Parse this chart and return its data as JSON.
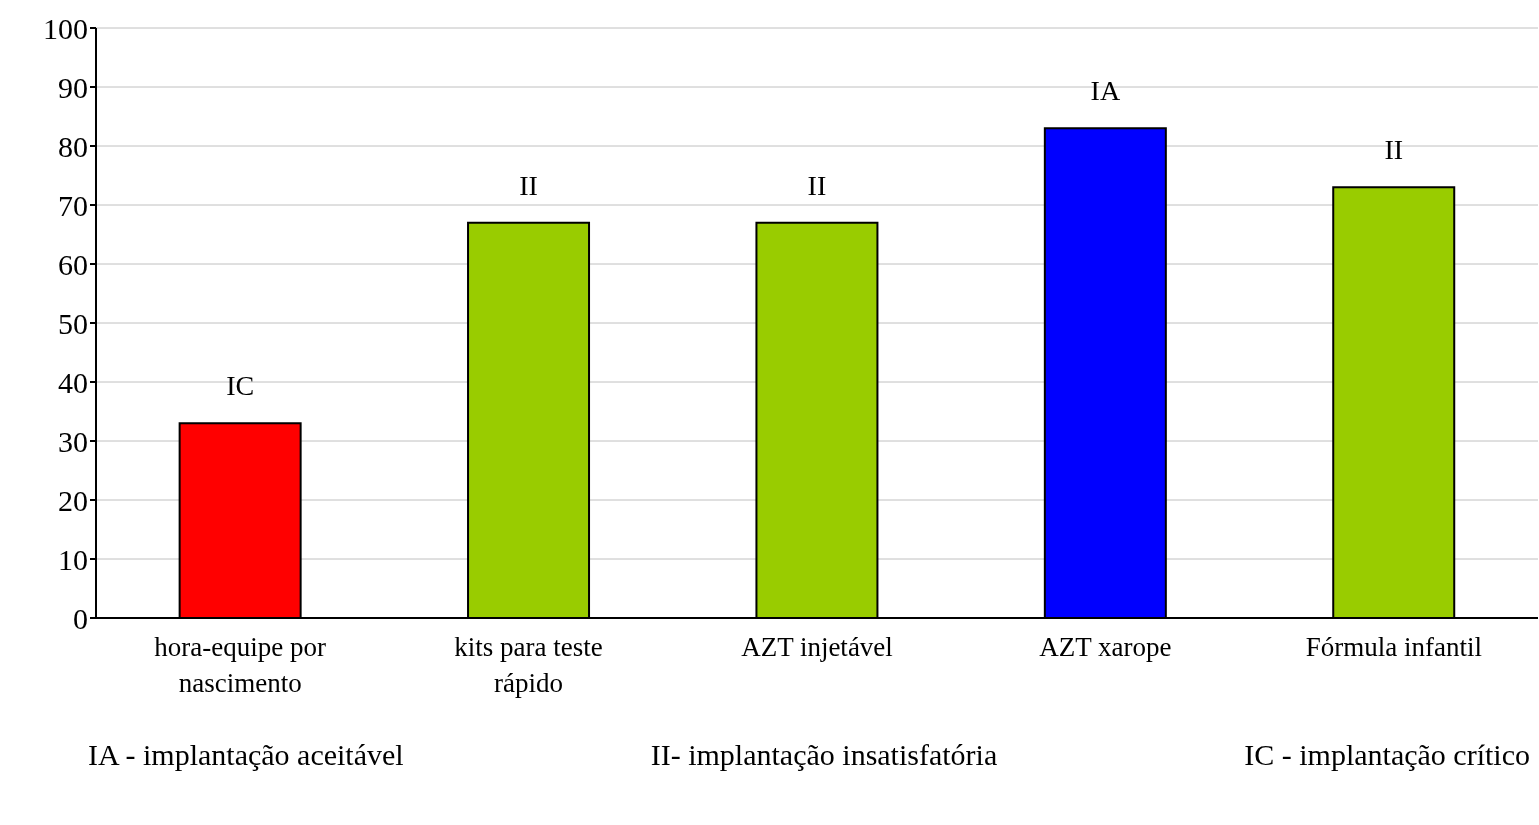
{
  "chart_data": {
    "type": "bar",
    "categories": [
      "hora-equipe por nascimento",
      "kits para teste rápido",
      "AZT injetável",
      "AZT xarope",
      "Fórmula infantil"
    ],
    "values": [
      33,
      67,
      67,
      83,
      73
    ],
    "colors": [
      "#ff0000",
      "#99cc00",
      "#99cc00",
      "#0000ff",
      "#99cc00"
    ],
    "value_labels": [
      "IC",
      "II",
      "II",
      "IA",
      "II"
    ],
    "ylim": [
      0,
      100
    ],
    "yticks": [
      0,
      10,
      20,
      30,
      40,
      50,
      60,
      70,
      80,
      90,
      100
    ],
    "grid": "y",
    "annotations": [
      "IA - implantação aceitável",
      "II- implantação insatisfatória",
      "IC - implantação crítico"
    ]
  }
}
